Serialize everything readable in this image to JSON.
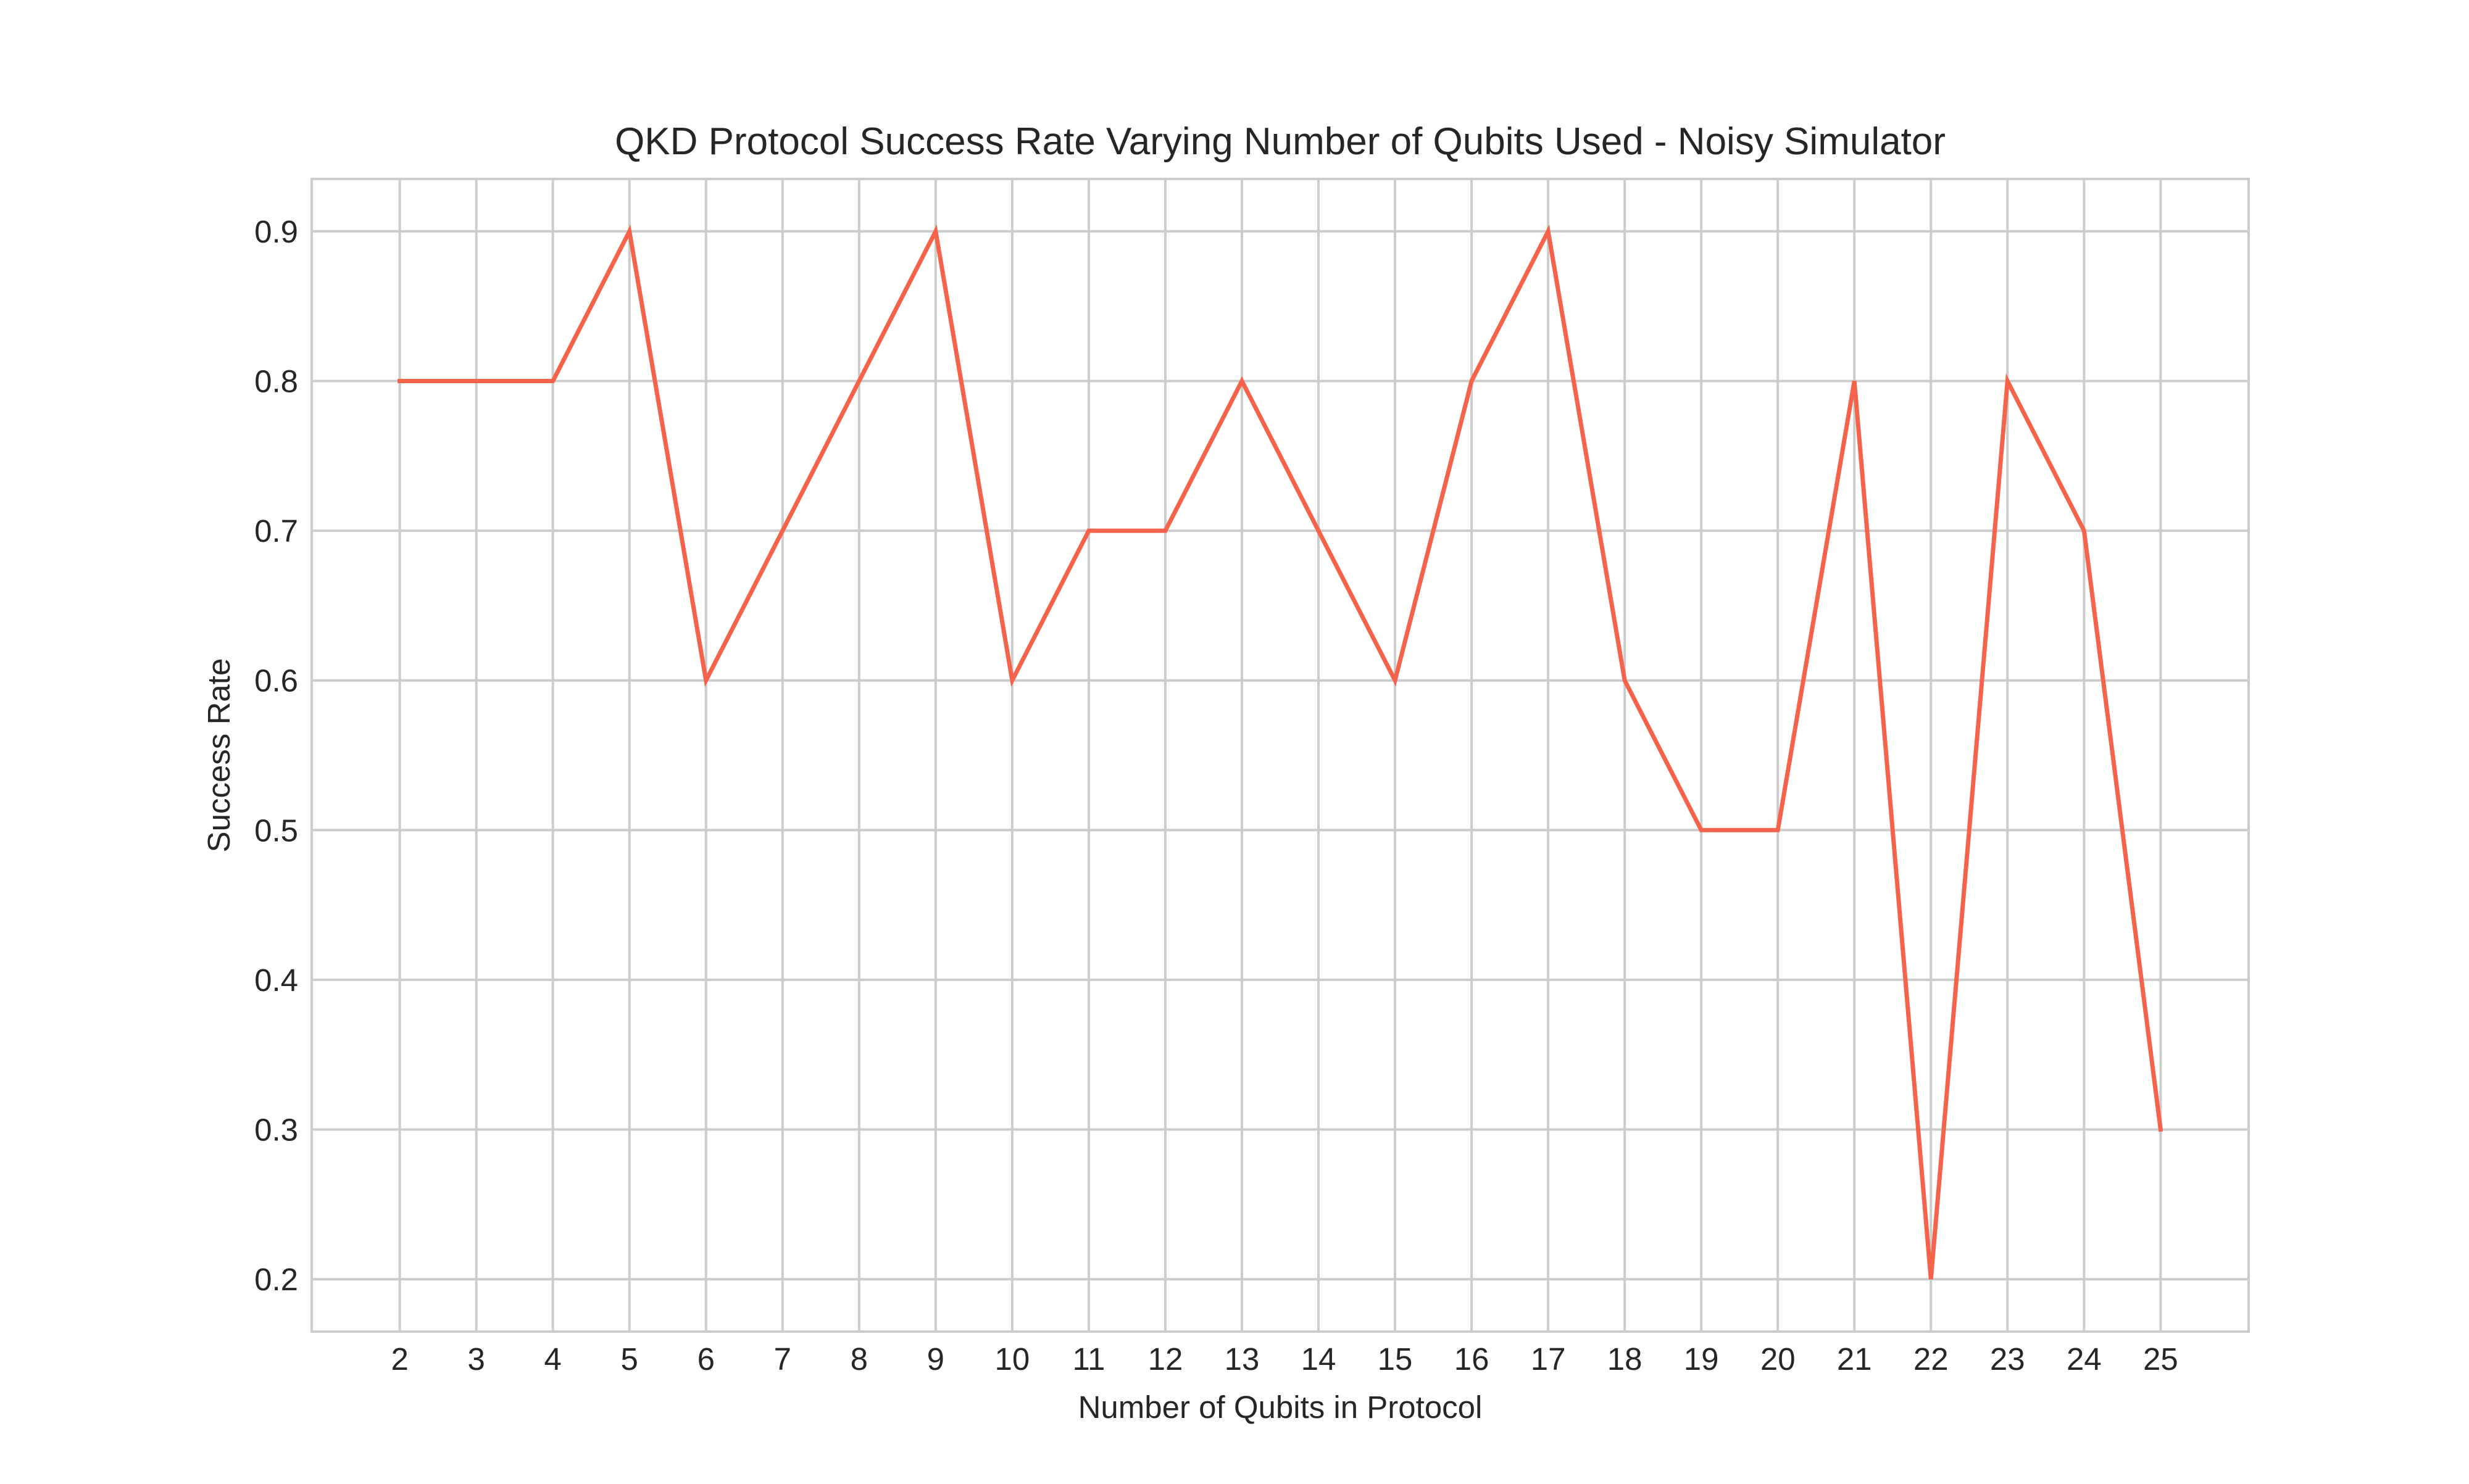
{
  "chart_data": {
    "type": "line",
    "title": "QKD Protocol Success Rate Varying Number of Qubits Used - Noisy Simulator",
    "xlabel": "Number of Qubits in Protocol",
    "ylabel": "Success Rate",
    "x": [
      2,
      3,
      4,
      5,
      6,
      7,
      8,
      9,
      10,
      11,
      12,
      13,
      14,
      15,
      16,
      17,
      18,
      19,
      20,
      21,
      22,
      23,
      24,
      25
    ],
    "series": [
      {
        "color": "#f4634a",
        "values": [
          0.8,
          0.8,
          0.8,
          0.9,
          0.6,
          0.7,
          0.8,
          0.9,
          0.6,
          0.7,
          0.7,
          0.8,
          0.7,
          0.6,
          0.8,
          0.9,
          0.6,
          0.5,
          0.5,
          0.8,
          0.2,
          0.8,
          0.7,
          0.3
        ]
      }
    ],
    "xticks": [
      "2",
      "3",
      "4",
      "5",
      "6",
      "7",
      "8",
      "9",
      "10",
      "11",
      "12",
      "13",
      "14",
      "15",
      "16",
      "17",
      "18",
      "19",
      "20",
      "21",
      "22",
      "23",
      "24",
      "25"
    ],
    "yticks": [
      "0.2",
      "0.3",
      "0.4",
      "0.5",
      "0.6",
      "0.7",
      "0.8",
      "0.9"
    ],
    "xlim": [
      0.85,
      26.15
    ],
    "ylim": [
      0.165,
      0.935
    ],
    "grid": true,
    "legend": "none",
    "background": "#ffffff",
    "grid_color": "#cccccc"
  }
}
